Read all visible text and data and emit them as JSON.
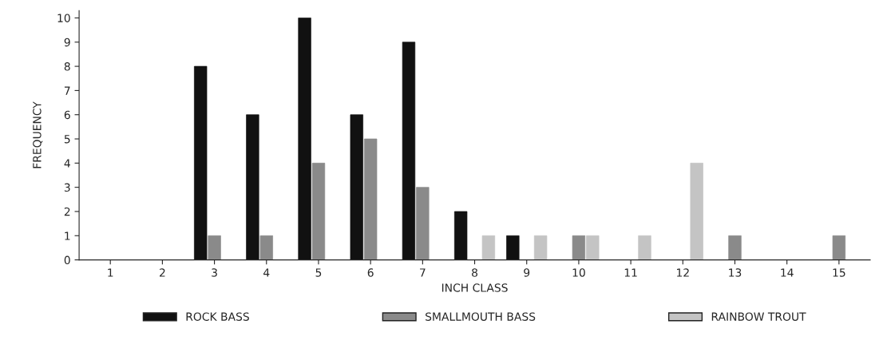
{
  "chart_data": {
    "type": "bar",
    "xlabel": "INCH CLASS",
    "ylabel": "FREQUENCY",
    "categories": [
      "1",
      "2",
      "3",
      "4",
      "5",
      "6",
      "7",
      "8",
      "9",
      "10",
      "11",
      "12",
      "13",
      "14",
      "15"
    ],
    "series": [
      {
        "name": "ROCK BASS",
        "color": "#111111",
        "values": [
          0,
          0,
          8,
          6,
          10,
          6,
          9,
          2,
          1,
          0,
          0,
          0,
          0,
          0,
          0
        ]
      },
      {
        "name": "SMALLMOUTH BASS",
        "color": "#8a8a8a",
        "values": [
          0,
          0,
          1,
          1,
          4,
          5,
          3,
          0,
          0,
          1,
          0,
          0,
          1,
          0,
          1
        ]
      },
      {
        "name": "RAINBOW TROUT",
        "color": "#c4c4c4",
        "values": [
          0,
          0,
          0,
          0,
          0,
          0,
          0,
          1,
          1,
          1,
          1,
          4,
          0,
          0,
          0
        ]
      }
    ],
    "ylim": [
      0,
      10.3
    ],
    "yticks": [
      0,
      1,
      2,
      3,
      4,
      5,
      6,
      7,
      8,
      9,
      10
    ],
    "grid": false,
    "legend": "bottom"
  }
}
